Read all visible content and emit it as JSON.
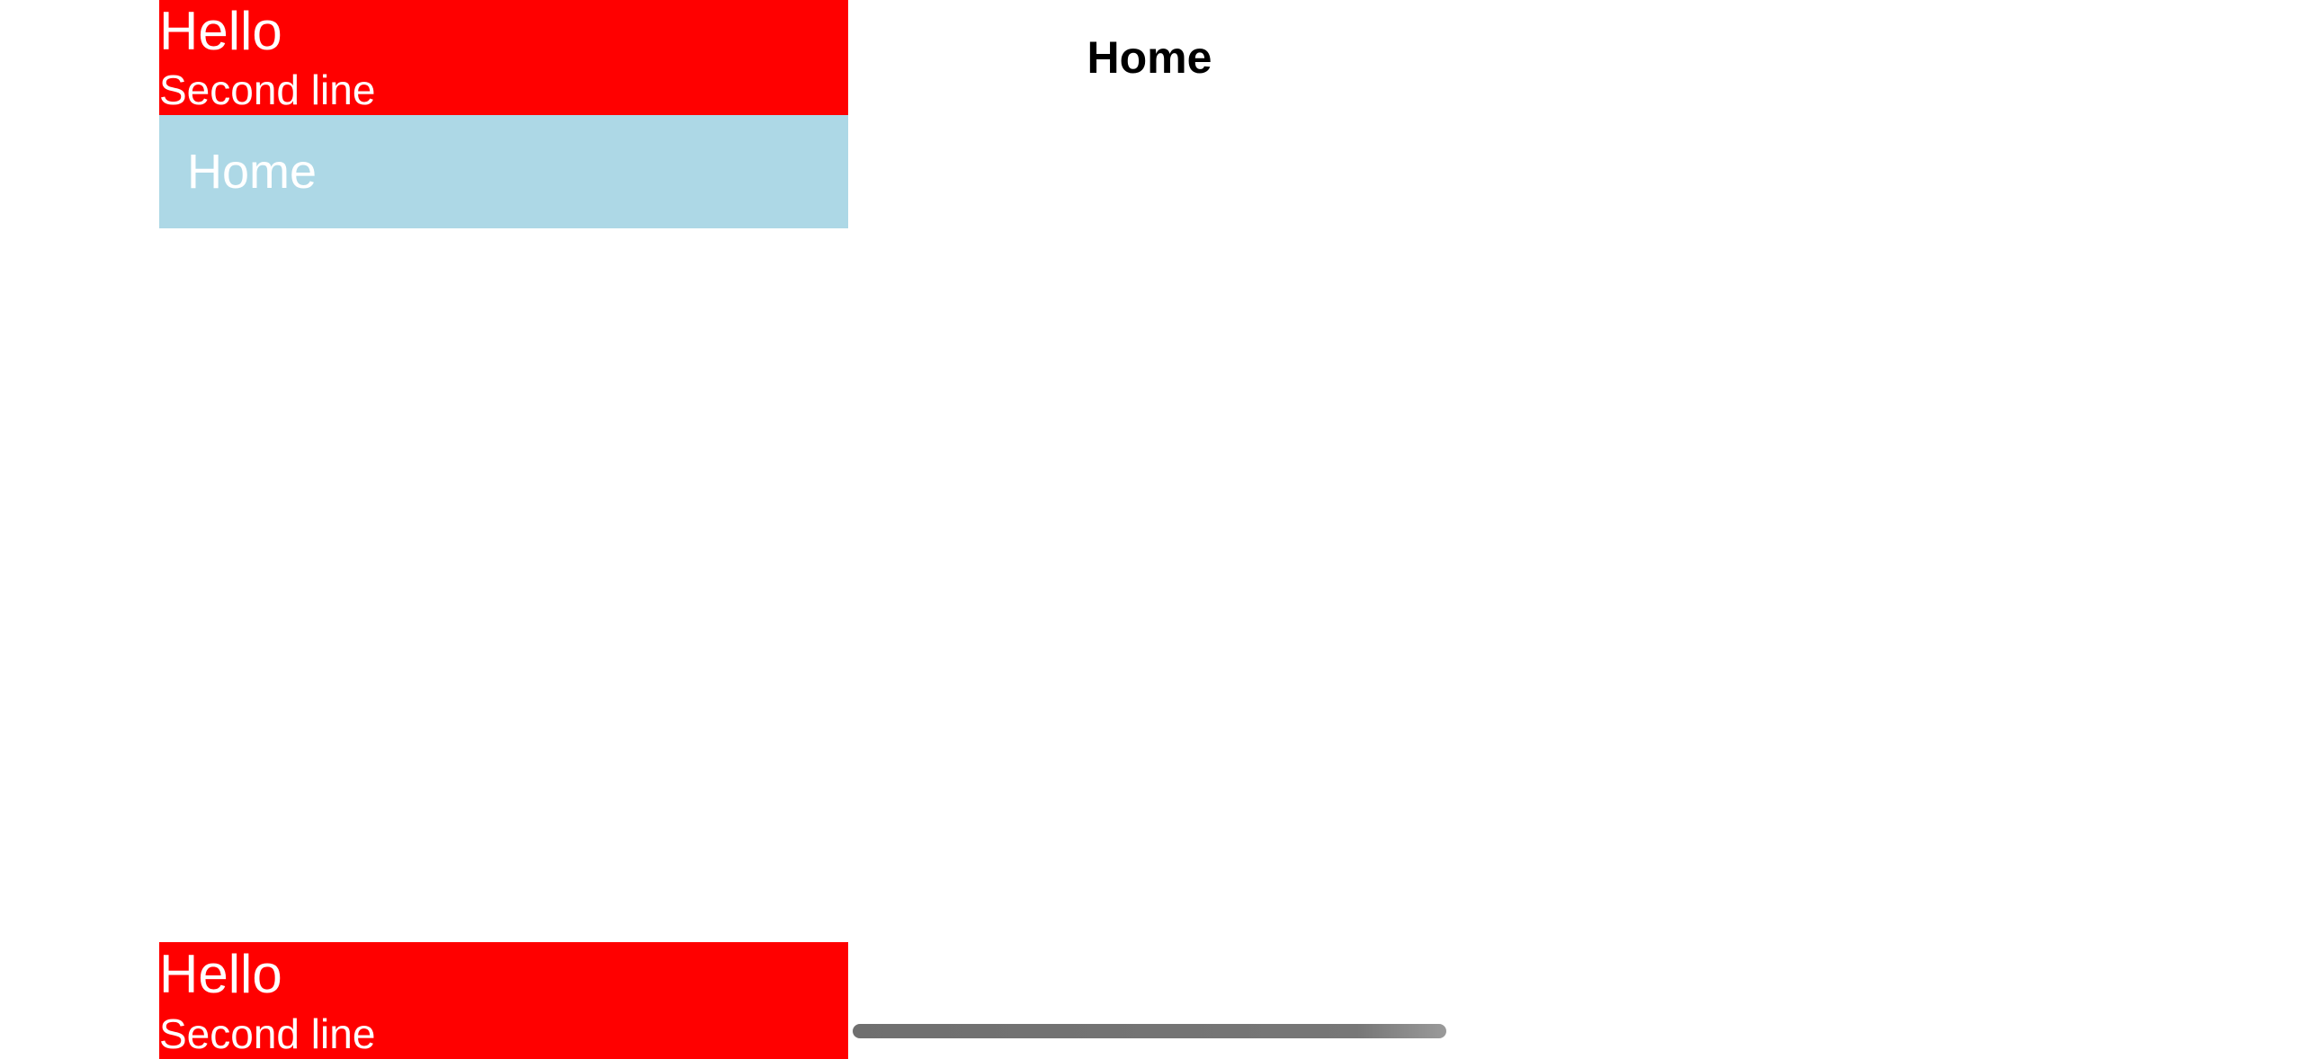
{
  "flyout": {
    "header": {
      "primary": "Hello",
      "secondary": "Second line"
    },
    "items": [
      {
        "label": "Home"
      }
    ],
    "footer": {
      "primary": "Hello",
      "secondary": "Second line"
    }
  },
  "page": {
    "title": "Home"
  },
  "colors": {
    "header_background": "#ff0000",
    "footer_background": "#ff0000",
    "selected_item_background": "#add8e6",
    "text_on_color": "#ffffff"
  }
}
